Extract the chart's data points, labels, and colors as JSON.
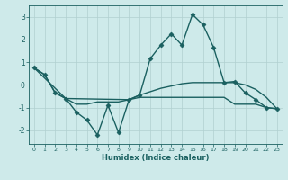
{
  "xlabel": "Humidex (Indice chaleur)",
  "bg_color": "#ceeaea",
  "line_color": "#1a6060",
  "grid_color": "#b0d0d0",
  "xlim": [
    -0.5,
    23.5
  ],
  "ylim": [
    -2.6,
    3.5
  ],
  "yticks": [
    -2,
    -1,
    0,
    1,
    2,
    3
  ],
  "xticks": [
    0,
    1,
    2,
    3,
    4,
    5,
    6,
    7,
    8,
    9,
    10,
    11,
    12,
    13,
    14,
    15,
    16,
    17,
    18,
    19,
    20,
    21,
    22,
    23
  ],
  "series": [
    {
      "x": [
        0,
        1,
        2,
        3,
        4,
        5,
        6,
        7,
        8,
        9,
        10,
        11,
        12,
        13,
        14,
        15,
        16,
        17,
        18,
        19,
        20,
        21,
        22,
        23
      ],
      "y": [
        0.75,
        0.45,
        -0.35,
        -0.6,
        -1.2,
        -1.55,
        -2.2,
        -0.9,
        -2.1,
        -0.65,
        -0.45,
        1.15,
        1.75,
        2.25,
        1.75,
        3.1,
        2.65,
        1.65,
        0.1,
        0.15,
        -0.35,
        -0.65,
        -1.0,
        -1.05
      ],
      "marker": "D",
      "markersize": 2.5,
      "linewidth": 1.0
    },
    {
      "x": [
        0,
        1,
        2,
        3,
        4,
        5,
        6,
        7,
        8,
        9,
        10,
        11,
        12,
        13,
        14,
        15,
        16,
        17,
        18,
        19,
        20,
        21,
        22,
        23
      ],
      "y": [
        0.75,
        0.45,
        -0.35,
        -0.6,
        -0.85,
        -0.85,
        -0.75,
        -0.75,
        -0.75,
        -0.65,
        -0.55,
        -0.55,
        -0.55,
        -0.55,
        -0.55,
        -0.55,
        -0.55,
        -0.55,
        -0.55,
        -0.85,
        -0.85,
        -0.85,
        -1.0,
        -1.05
      ],
      "marker": null,
      "linewidth": 1.0
    },
    {
      "x": [
        0,
        3,
        9,
        10,
        11,
        12,
        13,
        14,
        15,
        16,
        17,
        18,
        19,
        20,
        21,
        22,
        23
      ],
      "y": [
        0.75,
        -0.6,
        -0.65,
        -0.45,
        -0.3,
        -0.15,
        -0.05,
        0.05,
        0.1,
        0.1,
        0.1,
        0.1,
        0.1,
        0.0,
        -0.2,
        -0.55,
        -1.05
      ],
      "marker": null,
      "linewidth": 1.0
    }
  ]
}
